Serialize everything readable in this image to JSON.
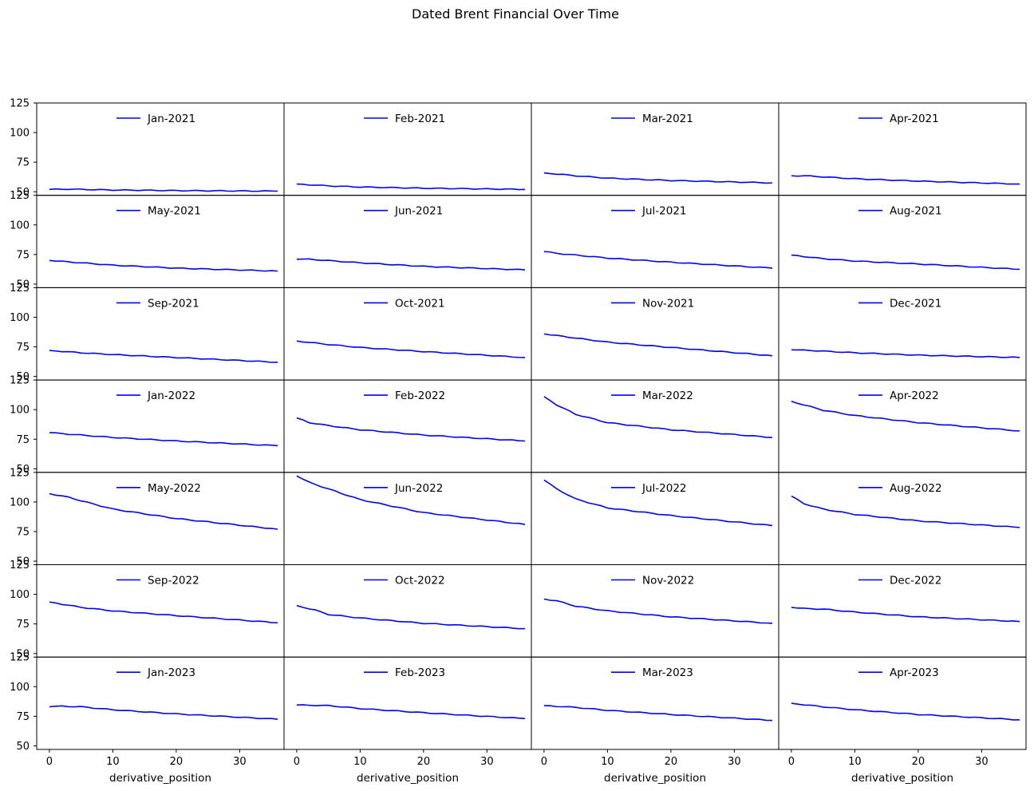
{
  "title": "Dated Brent Financial Over Time",
  "xlabel": "derivative_position",
  "line_color": "#0000ff",
  "chart_data": {
    "type": "line",
    "title": "Dated Brent Financial Over Time",
    "xlabel": "derivative_position",
    "ylabel": "",
    "xlim": [
      -2,
      37
    ],
    "ylim": [
      47,
      125
    ],
    "xticks": [
      0,
      10,
      20,
      30
    ],
    "yticks": [
      50,
      75,
      100,
      125
    ],
    "grid": false,
    "legend": "top-center",
    "layout": "7 rows x 4 columns, shared axes",
    "panels": [
      {
        "name": "Jan-2021",
        "anchors": [
          [
            0,
            52
          ],
          [
            3,
            52.2
          ],
          [
            10,
            51.5
          ],
          [
            20,
            51
          ],
          [
            36,
            50.5
          ]
        ]
      },
      {
        "name": "Feb-2021",
        "anchors": [
          [
            0,
            56.5
          ],
          [
            5,
            55
          ],
          [
            10,
            54
          ],
          [
            20,
            53
          ],
          [
            36,
            52
          ]
        ]
      },
      {
        "name": "Mar-2021",
        "anchors": [
          [
            0,
            66
          ],
          [
            5,
            63.5
          ],
          [
            10,
            61.5
          ],
          [
            20,
            59.5
          ],
          [
            36,
            57.5
          ]
        ]
      },
      {
        "name": "Apr-2021",
        "anchors": [
          [
            0,
            63.5
          ],
          [
            2,
            63.5
          ],
          [
            10,
            61
          ],
          [
            20,
            59
          ],
          [
            36,
            56.5
          ]
        ]
      },
      {
        "name": "May-2021",
        "anchors": [
          [
            0,
            70
          ],
          [
            5,
            68
          ],
          [
            10,
            66
          ],
          [
            20,
            63.5
          ],
          [
            36,
            61
          ]
        ]
      },
      {
        "name": "Jun-2021",
        "anchors": [
          [
            0,
            71
          ],
          [
            2,
            71
          ],
          [
            10,
            68
          ],
          [
            20,
            65
          ],
          [
            36,
            62
          ]
        ]
      },
      {
        "name": "Jul-2021",
        "anchors": [
          [
            0,
            77.5
          ],
          [
            2,
            76
          ],
          [
            10,
            72
          ],
          [
            20,
            68.5
          ],
          [
            36,
            63.5
          ]
        ]
      },
      {
        "name": "Aug-2021",
        "anchors": [
          [
            0,
            74.5
          ],
          [
            5,
            71.5
          ],
          [
            10,
            69.5
          ],
          [
            20,
            67
          ],
          [
            36,
            62.5
          ]
        ]
      },
      {
        "name": "Sep-2021",
        "anchors": [
          [
            0,
            72
          ],
          [
            5,
            70
          ],
          [
            10,
            68.5
          ],
          [
            20,
            66
          ],
          [
            36,
            62
          ]
        ]
      },
      {
        "name": "Oct-2021",
        "anchors": [
          [
            0,
            80
          ],
          [
            5,
            77
          ],
          [
            10,
            74.5
          ],
          [
            20,
            71
          ],
          [
            36,
            66
          ]
        ]
      },
      {
        "name": "Nov-2021",
        "anchors": [
          [
            0,
            86
          ],
          [
            2,
            84.5
          ],
          [
            10,
            79
          ],
          [
            20,
            74.5
          ],
          [
            36,
            67.5
          ]
        ]
      },
      {
        "name": "Dec-2021",
        "anchors": [
          [
            0,
            72.5
          ],
          [
            3,
            72
          ],
          [
            10,
            70
          ],
          [
            20,
            68
          ],
          [
            36,
            66
          ]
        ]
      },
      {
        "name": "Jan-2022",
        "anchors": [
          [
            0,
            80.5
          ],
          [
            5,
            78.5
          ],
          [
            10,
            76.5
          ],
          [
            20,
            73.5
          ],
          [
            36,
            69.5
          ]
        ]
      },
      {
        "name": "Feb-2022",
        "anchors": [
          [
            0,
            93
          ],
          [
            2,
            89
          ],
          [
            5,
            86.5
          ],
          [
            10,
            83
          ],
          [
            20,
            78.5
          ],
          [
            36,
            73.5
          ]
        ]
      },
      {
        "name": "Mar-2022",
        "anchors": [
          [
            0,
            111
          ],
          [
            2,
            104
          ],
          [
            5,
            96
          ],
          [
            10,
            89
          ],
          [
            20,
            83
          ],
          [
            36,
            76.5
          ]
        ]
      },
      {
        "name": "Apr-2022",
        "anchors": [
          [
            0,
            107
          ],
          [
            2,
            104
          ],
          [
            5,
            99.5
          ],
          [
            10,
            95
          ],
          [
            20,
            89
          ],
          [
            36,
            82
          ]
        ]
      },
      {
        "name": "May-2022",
        "anchors": [
          [
            0,
            107
          ],
          [
            3,
            104
          ],
          [
            5,
            101
          ],
          [
            10,
            94
          ],
          [
            20,
            86
          ],
          [
            36,
            77
          ]
        ]
      },
      {
        "name": "Jun-2022",
        "anchors": [
          [
            0,
            122
          ],
          [
            2,
            116.5
          ],
          [
            5,
            111
          ],
          [
            10,
            102
          ],
          [
            20,
            91
          ],
          [
            36,
            81
          ]
        ]
      },
      {
        "name": "Jul-2022",
        "anchors": [
          [
            0,
            118.5
          ],
          [
            2,
            111
          ],
          [
            5,
            102.5
          ],
          [
            10,
            95
          ],
          [
            20,
            88.5
          ],
          [
            36,
            80
          ]
        ]
      },
      {
        "name": "Aug-2022",
        "anchors": [
          [
            0,
            105
          ],
          [
            2,
            98.5
          ],
          [
            5,
            94
          ],
          [
            10,
            89.5
          ],
          [
            20,
            84
          ],
          [
            36,
            78.5
          ]
        ]
      },
      {
        "name": "Sep-2022",
        "anchors": [
          [
            0,
            93.5
          ],
          [
            5,
            89
          ],
          [
            10,
            86
          ],
          [
            20,
            82
          ],
          [
            36,
            76
          ]
        ]
      },
      {
        "name": "Oct-2022",
        "anchors": [
          [
            0,
            90.5
          ],
          [
            3,
            86.5
          ],
          [
            5,
            83
          ],
          [
            10,
            80
          ],
          [
            20,
            75.5
          ],
          [
            36,
            71
          ]
        ]
      },
      {
        "name": "Nov-2022",
        "anchors": [
          [
            0,
            96
          ],
          [
            2,
            94.5
          ],
          [
            5,
            90
          ],
          [
            10,
            86
          ],
          [
            20,
            81
          ],
          [
            36,
            75.5
          ]
        ]
      },
      {
        "name": "Dec-2022",
        "anchors": [
          [
            0,
            89
          ],
          [
            2,
            88
          ],
          [
            5,
            87.5
          ],
          [
            10,
            85
          ],
          [
            20,
            81
          ],
          [
            36,
            77
          ]
        ]
      },
      {
        "name": "Jan-2023",
        "anchors": [
          [
            0,
            83
          ],
          [
            2,
            83.5
          ],
          [
            5,
            83
          ],
          [
            10,
            80.5
          ],
          [
            20,
            77
          ],
          [
            36,
            72.5
          ]
        ]
      },
      {
        "name": "Feb-2023",
        "anchors": [
          [
            0,
            84.5
          ],
          [
            5,
            84
          ],
          [
            10,
            81.5
          ],
          [
            20,
            78
          ],
          [
            36,
            73
          ]
        ]
      },
      {
        "name": "Mar-2023",
        "anchors": [
          [
            0,
            84
          ],
          [
            5,
            82.5
          ],
          [
            10,
            80
          ],
          [
            20,
            76.5
          ],
          [
            36,
            71.5
          ]
        ]
      },
      {
        "name": "Apr-2023",
        "anchors": [
          [
            0,
            86
          ],
          [
            5,
            83
          ],
          [
            10,
            80.5
          ],
          [
            20,
            76.5
          ],
          [
            36,
            72
          ]
        ]
      }
    ]
  }
}
